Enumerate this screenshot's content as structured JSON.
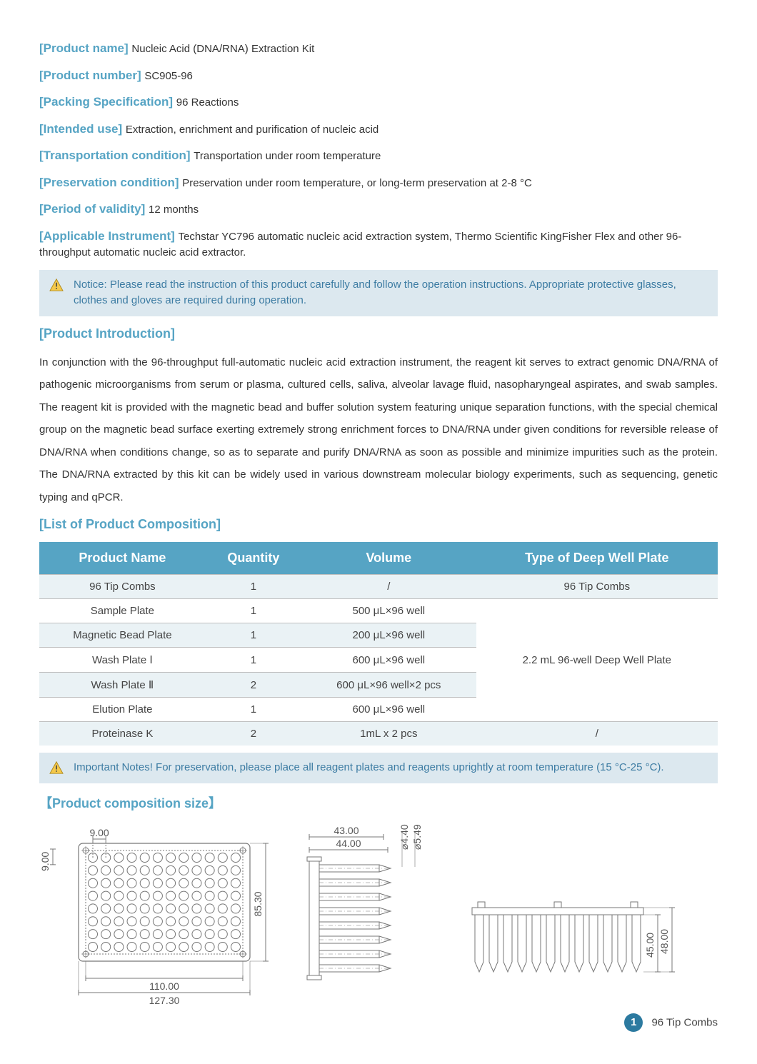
{
  "meta": [
    {
      "label": "[Product name]",
      "value": "Nucleic Acid (DNA/RNA) Extraction Kit"
    },
    {
      "label": "[Product number]",
      "value": "SC905-96"
    },
    {
      "label": "[Packing Specification]",
      "value": "96 Reactions"
    },
    {
      "label": "[Intended use]",
      "value": "Extraction, enrichment and purification of nucleic acid"
    },
    {
      "label": "[Transportation condition]",
      "value": "Transportation under room temperature"
    },
    {
      "label": "[Preservation condition]",
      "value": "Preservation under room temperature, or long-term preservation at 2-8 °C"
    },
    {
      "label": "[Period of validity]",
      "value": "12 months"
    },
    {
      "label": "[Applicable Instrument]",
      "value": "Techstar YC796 automatic nucleic acid extraction system, Thermo Scientific KingFisher Flex and other 96-throughput automatic nucleic acid extractor."
    }
  ],
  "notice1": "Notice: Please read the instruction of this product carefully and follow the operation instructions. Appropriate protective glasses, clothes and gloves are required during operation.",
  "section_intro_h": "[Product Introduction]",
  "intro_text": "In conjunction with the 96-throughput full-automatic nucleic acid extraction instrument, the reagent kit serves to extract genomic DNA/RNA of pathogenic microorganisms from serum or plasma, cultured cells, saliva, alveolar lavage fluid, nasopharyngeal aspirates, and swab samples. The reagent kit is provided with the magnetic bead and buffer solution system featuring unique separation functions, with the special chemical group on the magnetic bead surface exerting extremely strong enrichment forces to DNA/RNA under given conditions for reversible release of DNA/RNA when conditions change, so as to separate and purify DNA/RNA as soon as possible and minimize impurities such as the protein. The DNA/RNA extracted by this kit can be widely used in various downstream molecular biology experiments, such as sequencing, genetic typing and qPCR.",
  "section_list_h": "[List of Product Composition]",
  "table": {
    "headers": [
      "Product Name",
      "Quantity",
      "Volume",
      "Type of Deep Well Plate"
    ],
    "rows": [
      {
        "cells": [
          "96 Tip Combs",
          "1",
          "/",
          "96 Tip Combs"
        ],
        "alt": true
      },
      {
        "cells": [
          "Sample Plate",
          "1",
          "500 μL×96 well"
        ],
        "merged_start": true,
        "merged_text": "2.2 mL 96-well Deep Well Plate"
      },
      {
        "cells": [
          "Magnetic Bead Plate",
          "1",
          "200 μL×96 well"
        ],
        "alt": true
      },
      {
        "cells": [
          "Wash Plate Ⅰ",
          "1",
          "600 μL×96 well"
        ]
      },
      {
        "cells": [
          "Wash Plate Ⅱ",
          "2",
          "600 μL×96 well×2 pcs"
        ],
        "alt": true
      },
      {
        "cells": [
          "Elution Plate",
          "1",
          "600 μL×96 well"
        ]
      },
      {
        "cells": [
          "Proteinase K",
          "2",
          "1mL x 2 pcs",
          "/"
        ],
        "alt": true
      }
    ]
  },
  "notice2": "Important Notes! For preservation, please place all reagent plates and reagents uprightly at room temperature (15 °C-25 °C).",
  "section_size_h": "【Product composition size】",
  "diagram": {
    "d1": {
      "w_outer": "127.30",
      "w_inner": "110.00",
      "h": "85.30",
      "pitch_x": "9.00",
      "pitch_y": "9.00"
    },
    "d2": {
      "w_top": "43.00",
      "w_bot": "44.00",
      "dia1": "⌀4.40",
      "dia2": "⌀5.49"
    },
    "d3": {
      "h_inner": "45.00",
      "h_outer": "48.00"
    },
    "stroke": "#777777",
    "fill": "#ffffff",
    "text_color": "#555555",
    "font_size": 14
  },
  "footer": {
    "page": "1",
    "label": "96 Tip Combs"
  },
  "colors": {
    "accent": "#56a4c4",
    "notice_bg": "#dce8ef",
    "notice_text": "#3d7ca3",
    "th_bg": "#56a4c4",
    "row_alt": "#eaf2f5",
    "border": "#bfbfbf",
    "badge": "#2c7aa0",
    "warn_fill": "#f5c94b",
    "warn_stroke": "#b08a1b"
  }
}
